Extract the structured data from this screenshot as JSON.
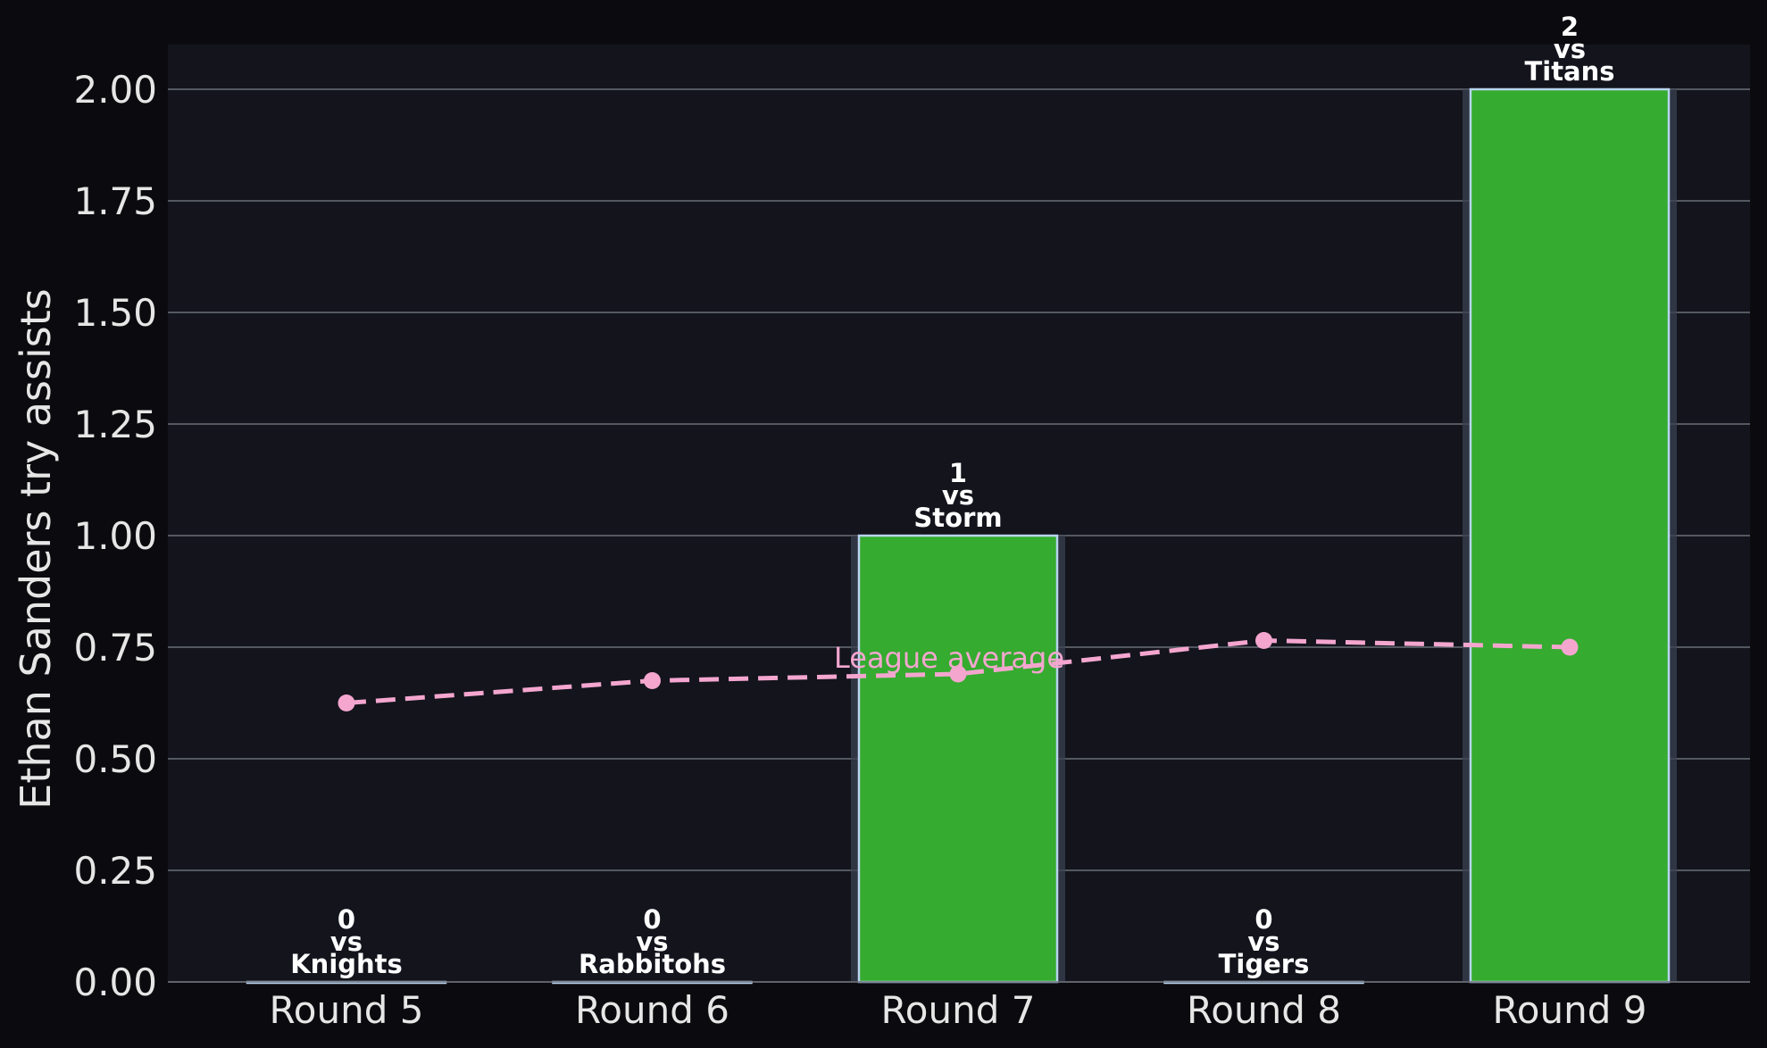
{
  "colors": {
    "page_background": "#0b0b0f",
    "plot_background": "#13141c",
    "bar_fill": "#35ab2f",
    "bar_edge": "#b8d4ef",
    "bar_shadow": "#3a4050",
    "grid": "#6b6e78",
    "text": "#e6e6e6",
    "bar_label": "#ffffff",
    "average_line": "#f4a6cf"
  },
  "chart_data": {
    "type": "bar",
    "ylabel": "Ethan Sanders try assists",
    "xlabel": "",
    "ylim": [
      0,
      2.1
    ],
    "yticks": [
      0.0,
      0.25,
      0.5,
      0.75,
      1.0,
      1.25,
      1.5,
      1.75,
      2.0
    ],
    "ytick_labels": [
      "0.00",
      "0.25",
      "0.50",
      "0.75",
      "1.00",
      "1.25",
      "1.50",
      "1.75",
      "2.00"
    ],
    "grid": "horizontal",
    "categories": [
      "Round 5",
      "Round 6",
      "Round 7",
      "Round 8",
      "Round 9"
    ],
    "values": [
      0,
      0,
      1,
      0,
      2
    ],
    "opponents": [
      "Knights",
      "Rabbitohs",
      "Storm",
      "Tigers",
      "Titans"
    ],
    "bar_labels": [
      [
        "0",
        "vs",
        "Knights"
      ],
      [
        "0",
        "vs",
        "Rabbitohs"
      ],
      [
        "1",
        "vs",
        "Storm"
      ],
      [
        "0",
        "vs",
        "Tigers"
      ],
      [
        "2",
        "vs",
        "Titans"
      ]
    ],
    "average_series": {
      "name": "League average",
      "style": "dashed line with markers",
      "values": [
        0.625,
        0.675,
        0.69,
        0.765,
        0.75
      ]
    }
  }
}
